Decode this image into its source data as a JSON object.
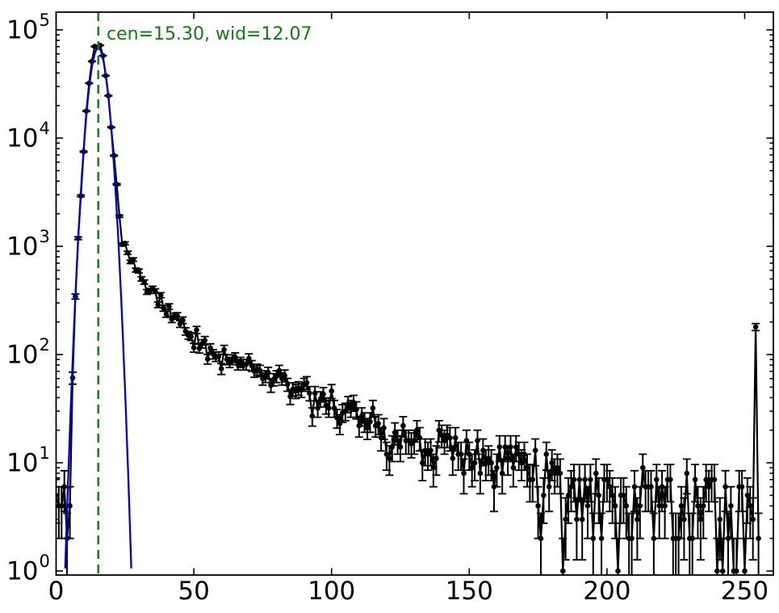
{
  "chart_data": {
    "type": "line",
    "subtype": "errorbar-histogram-with-gaussian-fit",
    "title": "",
    "xlabel": "",
    "ylabel": "",
    "x_axis": {
      "ticks": [
        0,
        50,
        100,
        150,
        200,
        250
      ],
      "tick_labels": [
        "0",
        "50",
        "100",
        "150",
        "200",
        "250"
      ],
      "range": [
        0,
        260.5
      ],
      "minor_ticks": false
    },
    "y_axis": {
      "scale": "log",
      "tick_base": "10",
      "tick_exponents": [
        "0",
        "1",
        "2",
        "3",
        "4",
        "5"
      ],
      "range": [
        0.92,
        150000
      ],
      "minor_ticks": true
    },
    "grid": false,
    "legend": null,
    "annotation": {
      "text": "cen=15.30, wid=12.07",
      "color": "#0e7d0e"
    },
    "fit_params": {
      "cen": 15.3,
      "wid": 12.07
    },
    "series": [
      {
        "name": "pixel-value-histogram",
        "style": "points-with-line-and-poisson-errorbars",
        "color": "#000000",
        "x_bins": [
          0,
          255
        ],
        "mean_anchors": [
          [
            0,
            6
          ],
          [
            1,
            3
          ],
          [
            2,
            2.5
          ],
          [
            3,
            2.8
          ],
          [
            4,
            3
          ],
          [
            5,
            3.5
          ],
          [
            6,
            60
          ],
          [
            7,
            330
          ],
          [
            8,
            1100
          ],
          [
            9,
            3100
          ],
          [
            10,
            8000
          ],
          [
            11,
            17000
          ],
          [
            12,
            31000
          ],
          [
            13,
            50000
          ],
          [
            14,
            64000
          ],
          [
            15,
            70000
          ],
          [
            16,
            72000
          ],
          [
            17,
            56000
          ],
          [
            18,
            40000
          ],
          [
            19,
            25000
          ],
          [
            20,
            14000
          ],
          [
            21,
            7200
          ],
          [
            22,
            3900
          ],
          [
            23,
            1950
          ],
          [
            24,
            1150
          ],
          [
            26,
            850
          ],
          [
            28,
            700
          ],
          [
            30,
            590
          ],
          [
            33,
            440
          ],
          [
            36,
            340
          ],
          [
            40,
            265
          ],
          [
            45,
            200
          ],
          [
            50,
            145
          ],
          [
            55,
            110
          ],
          [
            60,
            95
          ],
          [
            65,
            86
          ],
          [
            70,
            78
          ],
          [
            75,
            66
          ],
          [
            80,
            56
          ],
          [
            85,
            46
          ],
          [
            90,
            43
          ],
          [
            95,
            40
          ],
          [
            100,
            37
          ],
          [
            105,
            33
          ],
          [
            110,
            28
          ],
          [
            115,
            22
          ],
          [
            120,
            18
          ],
          [
            125,
            17
          ],
          [
            130,
            16
          ],
          [
            135,
            15
          ],
          [
            140,
            13.5
          ],
          [
            145,
            12.5
          ],
          [
            150,
            11
          ],
          [
            155,
            10
          ],
          [
            160,
            9.5
          ],
          [
            165,
            9
          ],
          [
            170,
            8.5
          ],
          [
            175,
            8
          ],
          [
            180,
            7
          ],
          [
            185,
            6.5
          ],
          [
            190,
            6
          ],
          [
            195,
            5.5
          ],
          [
            200,
            5.2
          ],
          [
            205,
            5
          ],
          [
            210,
            4.8
          ],
          [
            215,
            4.5
          ],
          [
            220,
            4.2
          ],
          [
            225,
            4
          ],
          [
            230,
            3.8
          ],
          [
            235,
            3.6
          ],
          [
            240,
            3.4
          ],
          [
            245,
            3.2
          ],
          [
            250,
            3
          ],
          [
            252,
            3
          ],
          [
            253,
            3
          ],
          [
            255,
            1
          ]
        ],
        "saturation_spike": {
          "x": 254,
          "value": 180
        },
        "errors": "sqrt(N)"
      },
      {
        "name": "gaussian-fit",
        "style": "solid-line",
        "color": "#0000dd",
        "amplitude": 68000,
        "center": 15.3,
        "sigma": 2.55
      },
      {
        "name": "center-marker",
        "style": "dashed-vertical-line",
        "color": "#0e7d0e",
        "x": 15.3
      }
    ]
  }
}
